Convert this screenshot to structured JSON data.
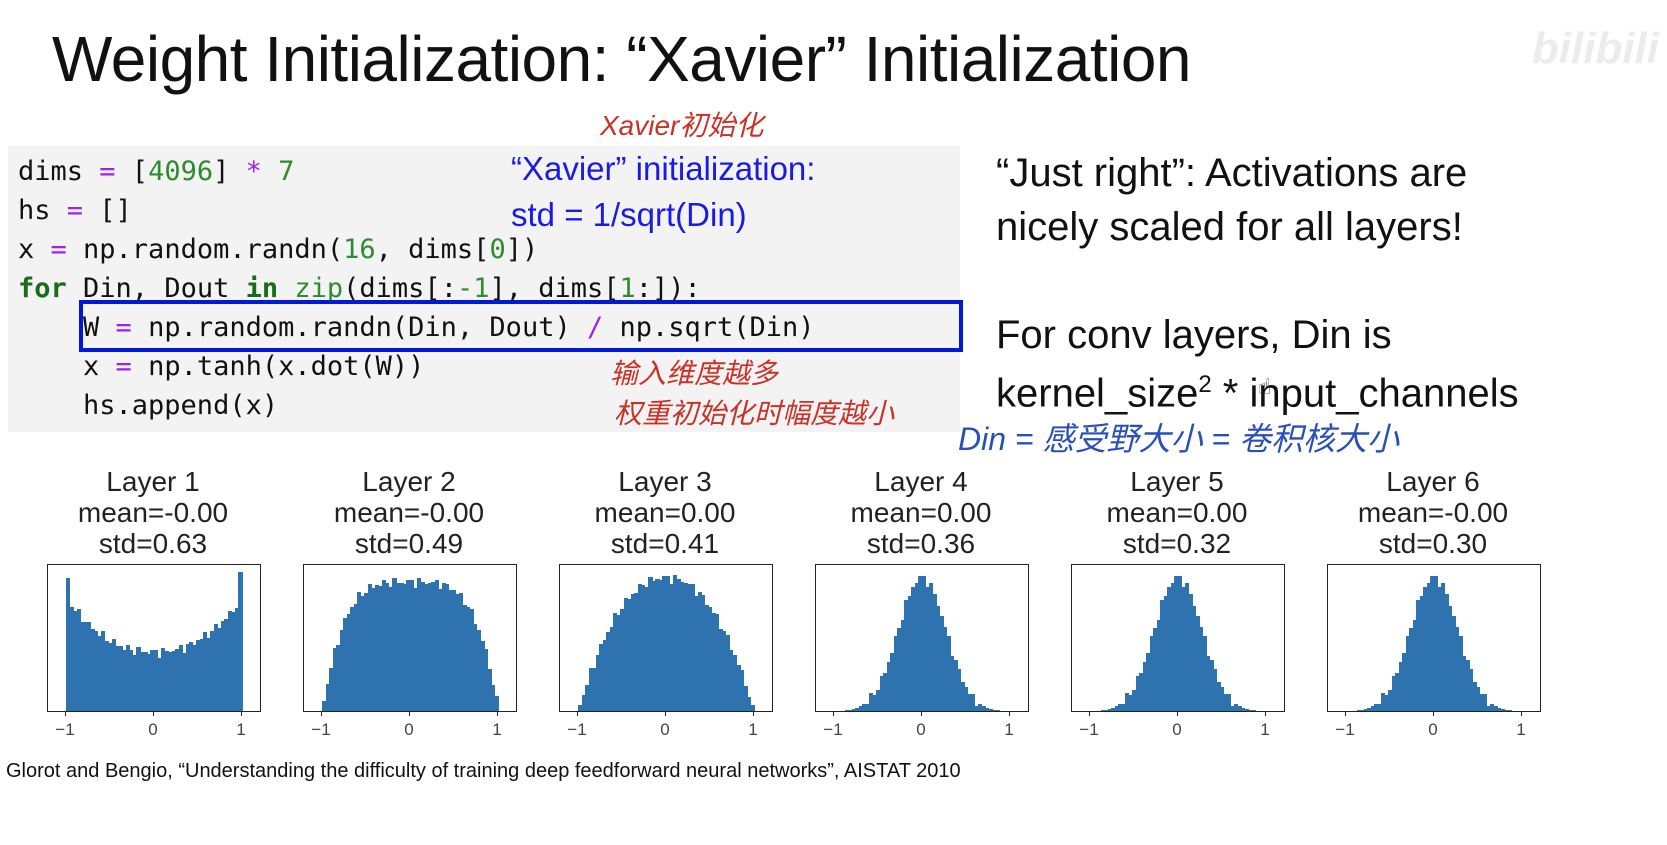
{
  "slide": {
    "title": "Weight Initialization: “Xavier” Initialization",
    "watermark": "bilibili",
    "code_lines": [
      [
        {
          "t": "dims ",
          "c": ""
        },
        {
          "t": "=",
          "c": "op"
        },
        {
          "t": " [",
          "c": ""
        },
        {
          "t": "4096",
          "c": "num"
        },
        {
          "t": "] ",
          "c": ""
        },
        {
          "t": "*",
          "c": "op"
        },
        {
          "t": " ",
          "c": ""
        },
        {
          "t": "7",
          "c": "num"
        }
      ],
      [
        {
          "t": "hs ",
          "c": ""
        },
        {
          "t": "=",
          "c": "op"
        },
        {
          "t": " []",
          "c": ""
        }
      ],
      [
        {
          "t": "x ",
          "c": ""
        },
        {
          "t": "=",
          "c": "op"
        },
        {
          "t": " np.random.randn(",
          "c": ""
        },
        {
          "t": "16",
          "c": "num"
        },
        {
          "t": ", dims[",
          "c": ""
        },
        {
          "t": "0",
          "c": "num"
        },
        {
          "t": "])",
          "c": ""
        }
      ],
      [
        {
          "t": "for",
          "c": "kw"
        },
        {
          "t": " Din, Dout ",
          "c": ""
        },
        {
          "t": "in",
          "c": "kw"
        },
        {
          "t": " ",
          "c": ""
        },
        {
          "t": "zip",
          "c": "bi"
        },
        {
          "t": "(dims[:",
          "c": ""
        },
        {
          "t": "-1",
          "c": "num"
        },
        {
          "t": "], dims[",
          "c": ""
        },
        {
          "t": "1",
          "c": "num"
        },
        {
          "t": ":]):",
          "c": ""
        }
      ],
      [
        {
          "t": "    W ",
          "c": ""
        },
        {
          "t": "=",
          "c": "op"
        },
        {
          "t": " np.random.randn(Din, Dout) ",
          "c": ""
        },
        {
          "t": "/",
          "c": "op"
        },
        {
          "t": " np.sqrt(Din)",
          "c": ""
        }
      ],
      [
        {
          "t": "    x ",
          "c": ""
        },
        {
          "t": "=",
          "c": "op"
        },
        {
          "t": " np.tanh(x.dot(W))",
          "c": ""
        }
      ],
      [
        {
          "t": "    hs.append(x)",
          "c": ""
        }
      ]
    ],
    "blue_note_line1": "“Xavier” initialization:",
    "blue_note_line2": "std = 1/sqrt(Din)",
    "handwritten_top": "Xavier初始化",
    "handwritten_mid_line1": "输入维度越多",
    "handwritten_mid_line2": "权重初始化时幅度越小",
    "handwritten_din": "Din = 感受野大小 = 卷积核大小",
    "right_line1": "“Just right”: Activations are",
    "right_line2": "nicely scaled for all layers!",
    "right_line3": "For conv layers, Din is",
    "right_line4_a": "kernel_size",
    "right_line4_sup": "2",
    "right_line4_b": " * input_channels",
    "citation": "Glorot and Bengio, “Understanding the difficulty of training deep feedforward neural networks”, AISTAT 2010"
  },
  "chart_data": [
    {
      "type": "bar",
      "title": "Layer 1",
      "subtitle_mean": "mean=-0.00",
      "subtitle_std": "std=0.63",
      "tick_labels": [
        "−1",
        "0",
        "1"
      ],
      "xlim": [
        -1,
        1
      ],
      "shape": "u",
      "color": "#2f72b0"
    },
    {
      "type": "bar",
      "title": "Layer 2",
      "subtitle_mean": "mean=-0.00",
      "subtitle_std": "std=0.49",
      "tick_labels": [
        "−1",
        "0",
        "1"
      ],
      "xlim": [
        -1,
        1
      ],
      "shape": "plateau",
      "color": "#2f72b0"
    },
    {
      "type": "bar",
      "title": "Layer 3",
      "subtitle_mean": "mean=0.00",
      "subtitle_std": "std=0.41",
      "tick_labels": [
        "−1",
        "0",
        "1"
      ],
      "xlim": [
        -1,
        1
      ],
      "shape": "dome",
      "color": "#2f72b0"
    },
    {
      "type": "bar",
      "title": "Layer 4",
      "subtitle_mean": "mean=0.00",
      "subtitle_std": "std=0.36",
      "tick_labels": [
        "−1",
        "0",
        "1"
      ],
      "xlim": [
        -1,
        1
      ],
      "shape": "bell",
      "color": "#2f72b0"
    },
    {
      "type": "bar",
      "title": "Layer 5",
      "subtitle_mean": "mean=0.00",
      "subtitle_std": "std=0.32",
      "tick_labels": [
        "−1",
        "0",
        "1"
      ],
      "xlim": [
        -1,
        1
      ],
      "shape": "bell",
      "color": "#2f72b0"
    },
    {
      "type": "bar",
      "title": "Layer 6",
      "subtitle_mean": "mean=-0.00",
      "subtitle_std": "std=0.30",
      "tick_labels": [
        "−1",
        "0",
        "1"
      ],
      "xlim": [
        -1,
        1
      ],
      "shape": "bell",
      "color": "#2f72b0"
    }
  ]
}
